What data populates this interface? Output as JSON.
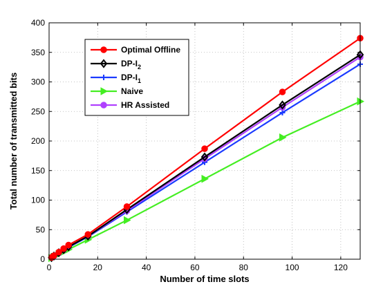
{
  "chart_data": {
    "type": "line",
    "xlabel": "Number of time slots",
    "ylabel": "Total number of transmitted bits",
    "xlim": [
      0,
      128
    ],
    "ylim": [
      0,
      400
    ],
    "xticks": [
      0,
      20,
      40,
      60,
      80,
      100,
      120
    ],
    "yticks": [
      0,
      50,
      100,
      150,
      200,
      250,
      300,
      350,
      400
    ],
    "grid": true,
    "legend_position": "top-left",
    "x": [
      1,
      2,
      4,
      6,
      8,
      16,
      32,
      64,
      96,
      128
    ],
    "series": [
      {
        "name": "Optimal Offline",
        "label_main": "Optimal Offline",
        "label_sub": "",
        "color": "#ff0000",
        "marker": "circle",
        "values": [
          3,
          6,
          12,
          18,
          24,
          42,
          89,
          187,
          283,
          374
        ]
      },
      {
        "name": "DP-I2",
        "label_main": "DP-I",
        "label_sub": "2",
        "color": "#000000",
        "marker": "diamond",
        "values": [
          2.7,
          5.4,
          11,
          16,
          21,
          39,
          84,
          173,
          261,
          346
        ]
      },
      {
        "name": "DP-I1",
        "label_main": "DP-I",
        "label_sub": "1",
        "color": "#1a3aff",
        "marker": "plus",
        "values": [
          2.6,
          5.2,
          10,
          15,
          20,
          38,
          80,
          164,
          248,
          330
        ]
      },
      {
        "name": "Naive",
        "label_main": "Naive",
        "label_sub": "",
        "color": "#44ee22",
        "marker": "triangle",
        "values": [
          2,
          4,
          8.5,
          12.5,
          16.5,
          33,
          66,
          136,
          206,
          267
        ]
      },
      {
        "name": "HR Assisted",
        "label_main": "HR Assisted",
        "label_sub": "",
        "color": "#b040ff",
        "marker": "circle",
        "values": [
          2.7,
          5.4,
          10.8,
          16,
          21,
          39,
          82,
          170,
          257,
          342
        ]
      }
    ]
  }
}
